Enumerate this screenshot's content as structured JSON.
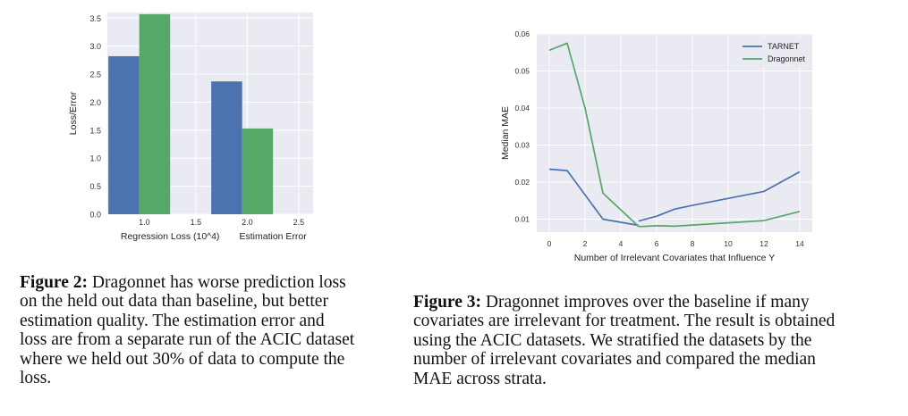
{
  "chart_data": [
    {
      "type": "bar",
      "title": "",
      "xlabel": "",
      "ylabel": "Loss/Error",
      "ylim": [
        0,
        3.6
      ],
      "yticks": [
        0.0,
        0.5,
        1.0,
        1.5,
        2.0,
        2.5,
        3.0,
        3.5
      ],
      "xlim": [
        0.64,
        2.64
      ],
      "xticks": [
        1.0,
        1.5,
        2.0,
        2.5
      ],
      "group_labels": [
        "Regression Loss (10^4)",
        "Estimation Error"
      ],
      "series": [
        {
          "name": "TARNET",
          "color": "#4c72b0",
          "bars": [
            {
              "x": 0.8,
              "value": 2.82
            },
            {
              "x": 1.8,
              "value": 2.37
            }
          ]
        },
        {
          "name": "Dragonnet",
          "color": "#55a868",
          "bars": [
            {
              "x": 1.1,
              "value": 3.57
            },
            {
              "x": 2.1,
              "value": 1.53
            }
          ]
        }
      ],
      "bar_width": 0.3,
      "grid": true,
      "background": "#eaeaf2"
    },
    {
      "type": "line",
      "title": "",
      "xlabel": "Number of Irrelevant Covariates that Influence Y",
      "ylabel": "Median MAE",
      "xlim": [
        -0.7,
        14.7
      ],
      "ylim": [
        0.0065,
        0.06
      ],
      "xticks": [
        0,
        2,
        4,
        6,
        8,
        10,
        12,
        14
      ],
      "yticks": [
        0.01,
        0.02,
        0.03,
        0.04,
        0.05,
        0.06
      ],
      "legend_position": "top-right",
      "series": [
        {
          "name": "TARNET",
          "color": "#4c72b0",
          "segments": [
            [
              [
                0,
                0.0235
              ],
              [
                1,
                0.0231
              ],
              [
                3,
                0.01
              ],
              [
                5,
                0.0083
              ]
            ],
            [
              [
                5,
                0.0095
              ],
              [
                6,
                0.0108
              ],
              [
                7,
                0.0127
              ],
              [
                8,
                0.0137
              ],
              [
                12,
                0.0175
              ],
              [
                14,
                0.0228
              ]
            ]
          ]
        },
        {
          "name": "Dragonnet",
          "color": "#55a868",
          "segments": [
            [
              [
                0,
                0.0556
              ],
              [
                1,
                0.0575
              ],
              [
                2,
                0.04
              ],
              [
                3,
                0.017
              ],
              [
                5,
                0.008
              ],
              [
                6,
                0.0082
              ],
              [
                7,
                0.0081
              ],
              [
                12,
                0.0096
              ],
              [
                14,
                0.0121
              ]
            ]
          ]
        }
      ],
      "grid": true,
      "background": "#eaeaf2"
    }
  ],
  "captions": {
    "fig2": {
      "label": "Figure 2:",
      "lines": [
        " Dragonnet has worse prediction loss",
        "on the held out data than baseline, but better",
        "estimation quality.  The estimation error and",
        "loss are from a separate run of the ACIC dataset",
        "where we held out 30% of data to compute the",
        "loss."
      ]
    },
    "fig3": {
      "label": "Figure 3:",
      "lines": [
        " Dragonnet improves over the baseline if many",
        "covariates are irrelevant for treatment. The result is obtained",
        "using the ACIC datasets. We stratified the datasets by the",
        "number of irrelevant covariates and compared the median",
        "MAE across strata."
      ]
    }
  }
}
